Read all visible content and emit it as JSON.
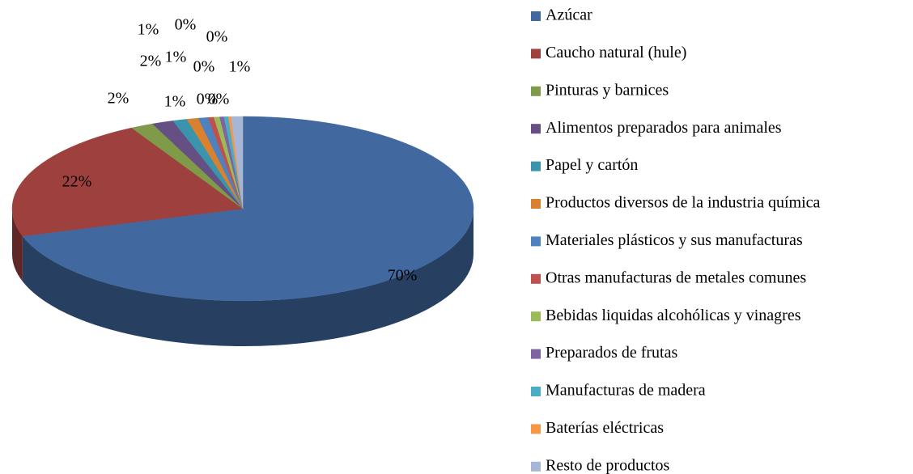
{
  "chart_data": {
    "type": "pie",
    "categories": [
      "Azúcar",
      "Caucho natural (hule)",
      "Pinturas y barnices",
      "Alimentos preparados para animales",
      "Papel y cartón",
      "Productos diversos de la industria química",
      "Materiales plásticos y sus manufacturas",
      "Otras manufacturas de metales comunes",
      "Bebidas liquidas alcohólicas y vinagres",
      "Preparados de frutas",
      "Manufacturas de madera",
      "Baterías eléctricas",
      "Resto de productos"
    ],
    "values": [
      70.2,
      21.8,
      1.6,
      1.5,
      1.0,
      0.8,
      0.7,
      0.4,
      0.4,
      0.3,
      0.3,
      0.2,
      0.8
    ],
    "value_labels": [
      "70%",
      "22%",
      "2%",
      "2%",
      "1%",
      "1%",
      "1%",
      "0%",
      "0%",
      "0%",
      "0%",
      "0%",
      "1%"
    ],
    "colors": [
      "#4169a0",
      "#9e413e",
      "#7f9a48",
      "#664f83",
      "#3a94ab",
      "#d9812f",
      "#4f81bd",
      "#c0504d",
      "#9bbb59",
      "#8064a2",
      "#4bacc6",
      "#f79646",
      "#a6b6d4"
    ],
    "legend": "right"
  }
}
